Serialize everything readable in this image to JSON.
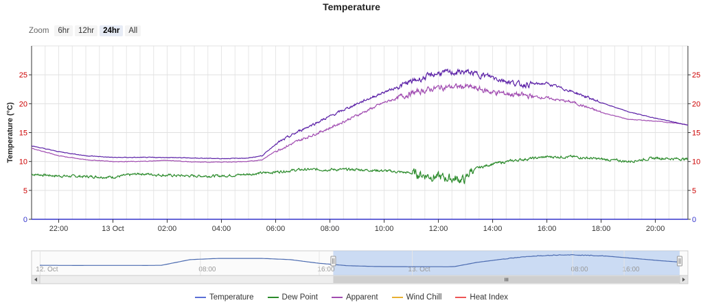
{
  "title": "Temperature",
  "zoom": {
    "label": "Zoom",
    "buttons": [
      {
        "label": "6hr",
        "active": false
      },
      {
        "label": "12hr",
        "active": false
      },
      {
        "label": "24hr",
        "active": true
      },
      {
        "label": "All",
        "active": false
      }
    ]
  },
  "navigator": {
    "labels": [
      "12. Oct",
      "08:00",
      "16:00",
      "13. Oct",
      "08:00",
      "16:00"
    ],
    "selected_range": [
      "12. Oct 21:00",
      "13. Oct 21:10"
    ]
  },
  "colors": {
    "temperature": "#5a1fa6",
    "dew_point": "#2a8a2a",
    "apparent": "#a04ab0",
    "wind_chill": "#e8b030",
    "heat_index": "#ee5555",
    "axis_label": "#cc0000",
    "axis_zero": "#3333cc"
  },
  "chart_data": {
    "type": "line",
    "title": "Temperature",
    "ylabel": "Temperature (°C)",
    "ylim": [
      0,
      30
    ],
    "y_ticks": [
      "0",
      "5",
      "10",
      "15",
      "20",
      "25"
    ],
    "x_ticks": [
      "22:00",
      "13 Oct",
      "02:00",
      "04:00",
      "06:00",
      "08:00",
      "10:00",
      "12:00",
      "14:00",
      "16:00",
      "18:00",
      "20:00"
    ],
    "x_tick_hours": [
      22,
      24,
      26,
      28,
      30,
      32,
      34,
      36,
      38,
      40,
      42,
      44
    ],
    "xlim_hours": [
      21.0,
      45.2
    ],
    "grid": true,
    "legend_position": "bottom",
    "series": [
      {
        "name": "Temperature",
        "x": [
          21,
          22,
          23,
          24,
          25,
          26,
          27,
          28,
          29,
          29.5,
          30,
          31,
          32,
          33,
          34,
          35,
          36,
          37,
          38,
          39,
          40,
          41,
          42,
          43,
          44,
          45.2
        ],
        "values": [
          12.7,
          11.7,
          11.0,
          10.7,
          10.7,
          10.7,
          10.6,
          10.5,
          10.6,
          11.0,
          13.0,
          15.6,
          17.8,
          20.0,
          22.0,
          23.8,
          25.3,
          25.5,
          24.6,
          23.3,
          23.5,
          22.0,
          20.2,
          18.6,
          17.5,
          16.3
        ]
      },
      {
        "name": "Dew Point",
        "x": [
          21,
          22,
          23,
          24,
          25,
          26,
          27,
          28,
          29,
          30,
          31,
          32,
          33,
          34,
          35,
          36,
          37,
          37.2,
          38,
          39,
          40,
          41,
          42,
          43,
          44,
          45.2
        ],
        "values": [
          7.8,
          7.5,
          7.4,
          7.3,
          7.9,
          7.6,
          7.5,
          7.5,
          7.8,
          8.2,
          8.6,
          8.6,
          8.6,
          8.4,
          8.0,
          7.3,
          6.8,
          8.5,
          9.6,
          10.3,
          10.8,
          10.8,
          10.4,
          10.0,
          10.6,
          10.4
        ]
      },
      {
        "name": "Apparent",
        "x": [
          21,
          22,
          23,
          24,
          25,
          26,
          27,
          28,
          29,
          29.5,
          30,
          31,
          32,
          33,
          34,
          35,
          36,
          37,
          38,
          39,
          40,
          41,
          42,
          43,
          44,
          45.2
        ],
        "values": [
          12.3,
          11.0,
          10.3,
          10.0,
          10.0,
          10.2,
          9.9,
          9.9,
          10.0,
          10.3,
          11.8,
          13.9,
          15.8,
          18.0,
          20.2,
          21.8,
          22.8,
          23.0,
          22.0,
          21.5,
          21.0,
          20.2,
          18.5,
          17.3,
          17.0,
          16.4
        ]
      },
      {
        "name": "Wind Chill",
        "x": [],
        "values": []
      },
      {
        "name": "Heat Index",
        "x": [],
        "values": []
      }
    ]
  }
}
